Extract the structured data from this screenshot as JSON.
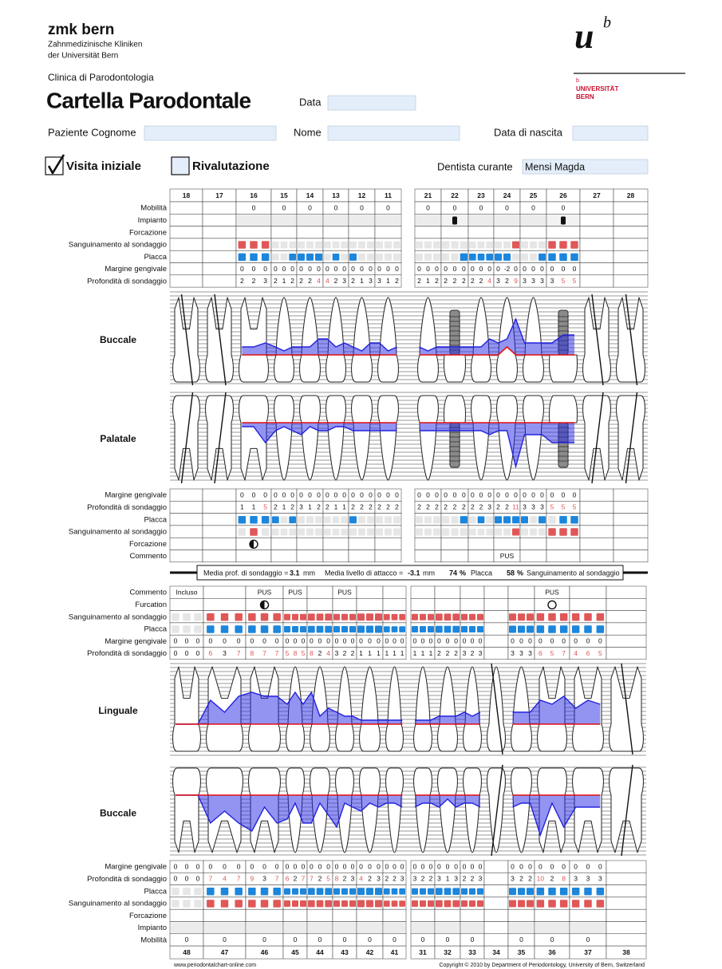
{
  "header": {
    "brand": "zmk bern",
    "brand_line1": "Zahnmedizinische Kliniken",
    "brand_line2": "der Universität Bern",
    "clinic": "Clinica di Parodontologia",
    "title": "Cartella Parodontale",
    "logo_u": "u",
    "logo_b": "b",
    "logo_small_b": "b",
    "logo_university": "UNIVERSITÄT",
    "logo_city": "BERN",
    "date_label": "Data",
    "surname_label": "Paziente Cognome",
    "name_label": "Nome",
    "birth_label": "Data di nascita",
    "initial_visit": "Visita iniziale",
    "reevaluation": "Rivalutazione",
    "dentist_label": "Dentista curante",
    "dentist": "Mensi Magda"
  },
  "upper": {
    "teeth": [
      "18",
      "17",
      "16",
      "15",
      "14",
      "13",
      "12",
      "11",
      "21",
      "22",
      "23",
      "24",
      "25",
      "26",
      "27",
      "28"
    ],
    "buccal": {
      "title": "Buccale",
      "labels": {
        "mobility": "Mobilità",
        "implant": "Impianto",
        "furcation": "Forcazione",
        "bleeding": "Sanguinamento al sondaggio",
        "plaque": "Placca",
        "margin": "Margine gengivale",
        "depth": "Profondità di sondaggio"
      },
      "mobility": [
        null,
        null,
        0,
        0,
        0,
        0,
        0,
        0,
        0,
        0,
        0,
        0,
        0,
        0,
        null,
        null
      ],
      "implant": [
        null,
        null,
        false,
        false,
        false,
        false,
        false,
        false,
        false,
        true,
        false,
        false,
        false,
        true,
        null,
        null
      ],
      "bleeding": [
        null,
        null,
        [
          1,
          1,
          1
        ],
        [
          0,
          0,
          0
        ],
        [
          0,
          0,
          0
        ],
        [
          0,
          0,
          0
        ],
        [
          0,
          0,
          0
        ],
        [
          0,
          0,
          0
        ],
        [
          0,
          0,
          0
        ],
        [
          0,
          0,
          0
        ],
        [
          0,
          0,
          0
        ],
        [
          0,
          0,
          1
        ],
        [
          0,
          0,
          0
        ],
        [
          1,
          1,
          1
        ],
        null,
        null
      ],
      "plaque": [
        null,
        null,
        [
          1,
          1,
          1
        ],
        [
          0,
          0,
          1
        ],
        [
          1,
          1,
          1
        ],
        [
          0,
          1,
          0
        ],
        [
          1,
          0,
          0
        ],
        [
          0,
          0,
          0
        ],
        [
          0,
          0,
          0
        ],
        [
          0,
          0,
          1
        ],
        [
          1,
          1,
          1
        ],
        [
          1,
          1,
          0
        ],
        [
          0,
          0,
          1
        ],
        [
          1,
          1,
          1
        ],
        null,
        null
      ],
      "margin": [
        null,
        null,
        [
          0,
          0,
          0
        ],
        [
          0,
          0,
          0
        ],
        [
          0,
          0,
          0
        ],
        [
          0,
          0,
          0
        ],
        [
          0,
          0,
          0
        ],
        [
          0,
          0,
          0
        ],
        [
          0,
          0,
          0
        ],
        [
          0,
          0,
          0
        ],
        [
          0,
          0,
          0
        ],
        [
          0,
          -2,
          0
        ],
        [
          0,
          0,
          0
        ],
        [
          0,
          0,
          0
        ],
        null,
        null
      ],
      "depth": [
        null,
        null,
        [
          2,
          2,
          3
        ],
        [
          2,
          1,
          2
        ],
        [
          2,
          2,
          4
        ],
        [
          4,
          2,
          3
        ],
        [
          2,
          1,
          3
        ],
        [
          3,
          1,
          2
        ],
        [
          2,
          1,
          2
        ],
        [
          2,
          2,
          2
        ],
        [
          2,
          2,
          4
        ],
        [
          3,
          2,
          9
        ],
        [
          3,
          3,
          3
        ],
        [
          3,
          5,
          5
        ],
        null,
        null
      ]
    },
    "palatal": {
      "title": "Palatale",
      "labels": {
        "margin": "Margine gengivale",
        "depth": "Profondità di sondaggio",
        "plaque": "Placca",
        "bleeding": "Sanguinamento al sondaggio",
        "furcation": "Forcazione",
        "comment": "Commento"
      },
      "margin": [
        null,
        null,
        [
          0,
          0,
          0
        ],
        [
          0,
          0,
          0
        ],
        [
          0,
          0,
          0
        ],
        [
          0,
          0,
          0
        ],
        [
          0,
          0,
          0
        ],
        [
          0,
          0,
          0
        ],
        [
          0,
          0,
          0
        ],
        [
          0,
          0,
          0
        ],
        [
          0,
          0,
          0
        ],
        [
          0,
          0,
          0
        ],
        [
          0,
          0,
          0
        ],
        [
          0,
          0,
          0
        ],
        null,
        null
      ],
      "depth": [
        null,
        null,
        [
          1,
          1,
          5
        ],
        [
          2,
          1,
          2
        ],
        [
          3,
          1,
          2
        ],
        [
          2,
          1,
          1
        ],
        [
          2,
          2,
          2
        ],
        [
          2,
          2,
          2
        ],
        [
          2,
          2,
          2
        ],
        [
          2,
          2,
          2
        ],
        [
          2,
          2,
          3
        ],
        [
          2,
          2,
          11
        ],
        [
          3,
          3,
          3
        ],
        [
          5,
          5,
          5
        ],
        null,
        null
      ],
      "plaque": [
        null,
        null,
        [
          1,
          1,
          1
        ],
        [
          1,
          0,
          1
        ],
        [
          0,
          0,
          0
        ],
        [
          0,
          0,
          0
        ],
        [
          1,
          0,
          0
        ],
        [
          0,
          0,
          0
        ],
        [
          0,
          0,
          0
        ],
        [
          0,
          0,
          1
        ],
        [
          0,
          1,
          0
        ],
        [
          1,
          1,
          1
        ],
        [
          1,
          0,
          1
        ],
        [
          0,
          1,
          1
        ],
        null,
        null
      ],
      "bleeding": [
        null,
        null,
        [
          0,
          1,
          0
        ],
        [
          0,
          0,
          0
        ],
        [
          0,
          0,
          0
        ],
        [
          0,
          0,
          0
        ],
        [
          0,
          0,
          0
        ],
        [
          0,
          0,
          0
        ],
        [
          0,
          0,
          0
        ],
        [
          0,
          0,
          0
        ],
        [
          0,
          0,
          0
        ],
        [
          0,
          0,
          1
        ],
        [
          0,
          0,
          0
        ],
        [
          1,
          1,
          1
        ],
        null,
        null
      ],
      "furcation": [
        null,
        null,
        2,
        null,
        null,
        null,
        null,
        null,
        null,
        null,
        null,
        null,
        null,
        null,
        null,
        null
      ],
      "comment": [
        null,
        null,
        null,
        null,
        null,
        null,
        null,
        null,
        null,
        null,
        null,
        "PUS",
        null,
        null,
        null,
        null
      ]
    }
  },
  "summary": {
    "mean_pd_label": "Media prof. di sondaggio =",
    "mean_pd": 3.1,
    "unit": "mm",
    "mean_cal_label": "Media livello di attacco =",
    "mean_cal": -3.1,
    "plaque": 74,
    "percent": "%",
    "plaque_label": "Placca",
    "bleeding": 58,
    "bleeding_label": "Sanguinamento al sondaggio"
  },
  "lower": {
    "teeth": [
      "48",
      "47",
      "46",
      "45",
      "44",
      "43",
      "42",
      "41",
      "31",
      "32",
      "33",
      "34",
      "35",
      "36",
      "37",
      "38"
    ],
    "lingual": {
      "title": "Linguale",
      "labels": {
        "comment": "Commento",
        "furcation": "Furcation",
        "bleeding": "Sanguinamento al sondaggio",
        "plaque": "Placca",
        "margin": "Margine gengivale",
        "depth": "Profondità di sondaggio"
      },
      "comment": [
        "Incluso",
        null,
        "PUS",
        "PUS",
        null,
        "PUS",
        null,
        null,
        null,
        null,
        null,
        null,
        null,
        "PUS",
        null,
        null
      ],
      "furcation": [
        null,
        null,
        2,
        null,
        null,
        null,
        null,
        null,
        null,
        null,
        null,
        null,
        null,
        1,
        null,
        null
      ],
      "bleeding": [
        [
          0,
          0,
          0
        ],
        [
          1,
          1,
          1
        ],
        [
          1,
          1,
          1
        ],
        [
          1,
          1,
          1
        ],
        [
          1,
          1,
          1
        ],
        [
          1,
          1,
          1
        ],
        [
          1,
          1,
          1
        ],
        [
          1,
          1,
          1
        ],
        [
          1,
          1,
          1
        ],
        [
          1,
          1,
          1
        ],
        [
          1,
          1,
          1
        ],
        null,
        [
          1,
          1,
          1
        ],
        [
          1,
          1,
          1
        ],
        [
          1,
          1,
          1
        ],
        null
      ],
      "plaque": [
        [
          0,
          0,
          0
        ],
        [
          1,
          1,
          1
        ],
        [
          1,
          1,
          1
        ],
        [
          1,
          1,
          1
        ],
        [
          1,
          1,
          1
        ],
        [
          1,
          1,
          1
        ],
        [
          1,
          1,
          1
        ],
        [
          1,
          1,
          1
        ],
        [
          1,
          1,
          1
        ],
        [
          1,
          1,
          1
        ],
        [
          1,
          1,
          1
        ],
        null,
        [
          1,
          1,
          1
        ],
        [
          1,
          1,
          1
        ],
        [
          1,
          1,
          1
        ],
        null
      ],
      "margin": [
        [
          0,
          0,
          0
        ],
        [
          0,
          0,
          0
        ],
        [
          0,
          0,
          0
        ],
        [
          0,
          0,
          0
        ],
        [
          0,
          0,
          0
        ],
        [
          0,
          0,
          0
        ],
        [
          0,
          0,
          0
        ],
        [
          0,
          0,
          0
        ],
        [
          0,
          0,
          0
        ],
        [
          0,
          0,
          0
        ],
        [
          0,
          0,
          0
        ],
        null,
        [
          0,
          0,
          0
        ],
        [
          0,
          0,
          0
        ],
        [
          0,
          0,
          0
        ],
        null
      ],
      "depth": [
        [
          0,
          0,
          0
        ],
        [
          6,
          3,
          7
        ],
        [
          8,
          7,
          7
        ],
        [
          5,
          8,
          5
        ],
        [
          8,
          2,
          4
        ],
        [
          3,
          2,
          2
        ],
        [
          1,
          1,
          1
        ],
        [
          1,
          1,
          1
        ],
        [
          1,
          1,
          1
        ],
        [
          2,
          2,
          2
        ],
        [
          3,
          2,
          3
        ],
        null,
        [
          3,
          3,
          3
        ],
        [
          6,
          5,
          7
        ],
        [
          4,
          6,
          5
        ],
        null
      ]
    },
    "buccal": {
      "title": "Buccale",
      "labels": {
        "margin": "Margine gengivale",
        "depth": "Profondità di sondaggio",
        "plaque": "Placca",
        "bleeding": "Sanguinamento al sondaggio",
        "furcation": "Forcazione",
        "implant": "Impianto",
        "mobility": "Mobilità"
      },
      "margin": [
        [
          0,
          0,
          0
        ],
        [
          0,
          0,
          0
        ],
        [
          0,
          0,
          0
        ],
        [
          0,
          0,
          0
        ],
        [
          0,
          0,
          0
        ],
        [
          0,
          0,
          0
        ],
        [
          0,
          0,
          0
        ],
        [
          0,
          0,
          0
        ],
        [
          0,
          0,
          0
        ],
        [
          0,
          0,
          0
        ],
        [
          0,
          0,
          0
        ],
        null,
        [
          0,
          0,
          0
        ],
        [
          0,
          0,
          0
        ],
        [
          0,
          0,
          0
        ],
        null
      ],
      "depth": [
        [
          0,
          0,
          0
        ],
        [
          7,
          4,
          7
        ],
        [
          9,
          3,
          7
        ],
        [
          6,
          2,
          7
        ],
        [
          7,
          2,
          5
        ],
        [
          8,
          2,
          3
        ],
        [
          4,
          2,
          3
        ],
        [
          2,
          2,
          3
        ],
        [
          3,
          2,
          2
        ],
        [
          3,
          1,
          3
        ],
        [
          2,
          2,
          3
        ],
        null,
        [
          3,
          2,
          2
        ],
        [
          10,
          2,
          8
        ],
        [
          3,
          3,
          3
        ],
        null
      ],
      "plaque": [
        [
          0,
          0,
          0
        ],
        [
          1,
          1,
          1
        ],
        [
          1,
          1,
          1
        ],
        [
          1,
          1,
          1
        ],
        [
          1,
          1,
          1
        ],
        [
          1,
          1,
          1
        ],
        [
          1,
          1,
          1
        ],
        [
          1,
          1,
          1
        ],
        [
          1,
          1,
          1
        ],
        [
          1,
          1,
          1
        ],
        [
          1,
          1,
          1
        ],
        null,
        [
          1,
          1,
          1
        ],
        [
          1,
          1,
          1
        ],
        [
          1,
          1,
          1
        ],
        null
      ],
      "bleeding": [
        [
          0,
          0,
          0
        ],
        [
          1,
          1,
          1
        ],
        [
          1,
          1,
          1
        ],
        [
          1,
          1,
          1
        ],
        [
          1,
          1,
          1
        ],
        [
          1,
          1,
          1
        ],
        [
          1,
          1,
          1
        ],
        [
          1,
          1,
          1
        ],
        [
          1,
          1,
          1
        ],
        [
          1,
          1,
          1
        ],
        [
          1,
          1,
          1
        ],
        null,
        [
          1,
          1,
          1
        ],
        [
          1,
          1,
          1
        ],
        [
          1,
          1,
          1
        ],
        null
      ],
      "implant": [
        false,
        false,
        false,
        false,
        false,
        false,
        false,
        false,
        false,
        false,
        false,
        null,
        false,
        false,
        false,
        null
      ],
      "mobility": [
        0,
        0,
        0,
        0,
        0,
        0,
        0,
        0,
        0,
        0,
        0,
        null,
        0,
        0,
        0,
        null
      ]
    }
  },
  "footer": {
    "website": "www.periodontalchart-online.com",
    "copyright": "Copyright © 2010 by Department of Periodontology, University of Bern, Switzerland"
  }
}
